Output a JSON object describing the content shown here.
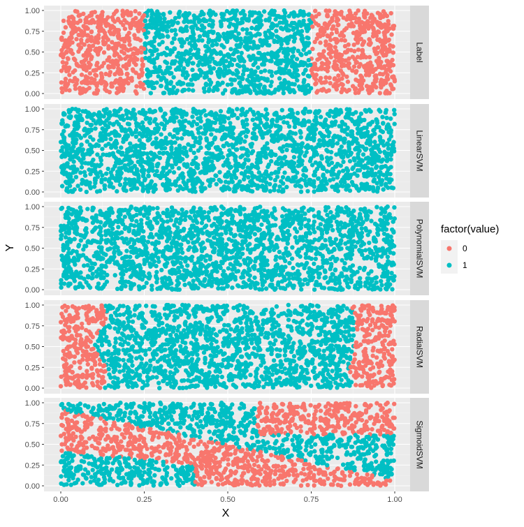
{
  "chart_data": {
    "type": "scatter",
    "title": "",
    "xlabel": "X",
    "ylabel": "Y",
    "xlim": [
      0,
      1
    ],
    "ylim": [
      0,
      1
    ],
    "x_ticks": [
      "0.00",
      "0.25",
      "0.50",
      "0.75",
      "1.00"
    ],
    "y_ticks": [
      "0.00",
      "0.25",
      "0.50",
      "0.75",
      "1.00"
    ],
    "grid": true,
    "facets": [
      "Label",
      "LinearSVM",
      "PolynomialSVM",
      "RadialSVM",
      "SigmoidSVM"
    ],
    "legend": {
      "title": "factor(value)",
      "position": "right",
      "entries": [
        {
          "label": "0",
          "color": "#F8766D"
        },
        {
          "label": "1",
          "color": "#00BFC4"
        }
      ]
    },
    "points_per_panel": 2000,
    "class_regions": {
      "Label": "value 0 where x < 0.25 or x > 0.75; otherwise 1",
      "LinearSVM": "all points value 1",
      "PolynomialSVM": "all points value 1",
      "RadialSVM": "value 0 where x < ~0.13 or x > ~0.87; otherwise 1",
      "SigmoidSVM": "value 0 in band between y = 0.92 - 0.85x and y = 0.42 - 0.42x (x < 0.4) / upper-right block x > ~0.58 & y > ~0.63; otherwise 1"
    }
  }
}
